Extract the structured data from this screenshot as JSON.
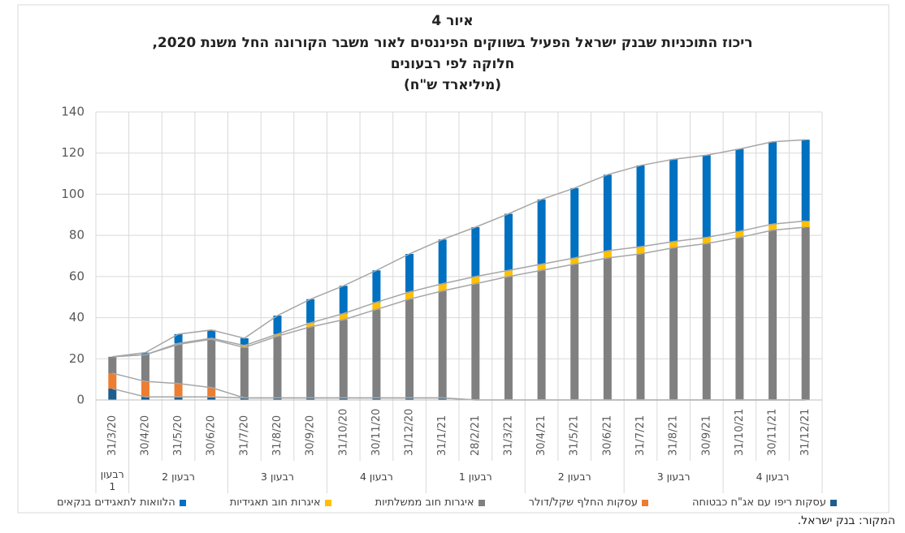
{
  "chart_data": {
    "type": "stacked_bar",
    "title": "איור 4",
    "subtitle": [
      "ריכוז התוכניות שבנק ישראל הפעיל בשווקים הפיננסים לאור משבר הקורונה החל משנת 2020,",
      "חלוקה לפי רבעונים",
      "(מיליארד ש\"ח)"
    ],
    "categories": [
      "31/3/20",
      "30/4/20",
      "31/5/20",
      "30/6/20",
      "31/7/20",
      "31/8/20",
      "30/9/20",
      "31/10/20",
      "30/11/20",
      "31/12/20",
      "31/1/21",
      "28/2/21",
      "31/3/21",
      "30/4/21",
      "31/5/21",
      "30/6/21",
      "31/7/21",
      "31/8/21",
      "30/9/21",
      "31/10/21",
      "30/11/21",
      "31/12/21"
    ],
    "groups": [
      {
        "label": "רבעון 1",
        "count": 1
      },
      {
        "label": "רבעון 2",
        "count": 3
      },
      {
        "label": "רבעון 3",
        "count": 3
      },
      {
        "label": "רבעון 4",
        "count": 3
      },
      {
        "label": "רבעון 1",
        "count": 3
      },
      {
        "label": "רבעון 2",
        "count": 3
      },
      {
        "label": "רבעון 3",
        "count": 3
      },
      {
        "label": "רבעון 4",
        "count": 3
      }
    ],
    "series": [
      {
        "name": "עסקות ריפו עם אג\"ח כבטוחה",
        "color": "#1f5d8c",
        "values": [
          5.5,
          1.5,
          1.5,
          1.5,
          1,
          1,
          1,
          1,
          1,
          1,
          1,
          0,
          0,
          0,
          0,
          0,
          0,
          0,
          0,
          0,
          0,
          0
        ]
      },
      {
        "name": "עסקות החלף שקל/דולר",
        "color": "#ed7d31",
        "values": [
          7.5,
          7.5,
          6.5,
          4.5,
          0,
          0,
          0,
          0,
          0,
          0,
          0,
          0,
          0,
          0,
          0,
          0,
          0,
          0,
          0,
          0,
          0,
          0
        ]
      },
      {
        "name": "איגרות חוב ממשלתיות",
        "color": "#808080",
        "values": [
          8,
          13,
          19,
          23.5,
          24.5,
          30,
          34.5,
          38,
          43,
          48,
          52,
          56.5,
          60,
          63,
          66,
          69,
          71,
          74,
          76,
          79,
          82.5,
          84
        ]
      },
      {
        "name": "איגרות חוב תאגידיות",
        "color": "#ffc000",
        "values": [
          0,
          0,
          0.5,
          0.5,
          1,
          1,
          2,
          3,
          3.5,
          3.5,
          3.5,
          3.5,
          3,
          3,
          3,
          3.5,
          3.5,
          3,
          3,
          3,
          3,
          3
        ]
      },
      {
        "name": "הלוואות לתאגידים בנקאים",
        "color": "#0070c0",
        "values": [
          0,
          1,
          4.5,
          4,
          3.5,
          9,
          11.5,
          13.5,
          15.5,
          18.5,
          21.5,
          24,
          27.5,
          31.5,
          34,
          37,
          39.5,
          40,
          40,
          40,
          40,
          39.5
        ]
      }
    ],
    "ylim": [
      0,
      140
    ],
    "yticks": [
      0,
      20,
      40,
      60,
      80,
      100,
      120,
      140
    ],
    "grid": true,
    "line_color": "#a6a6a6",
    "source": "המקור: בנק ישראל."
  }
}
